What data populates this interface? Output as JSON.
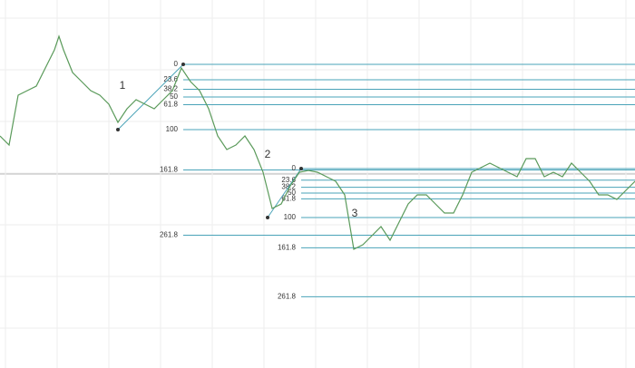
{
  "chart_data": {
    "type": "line",
    "x": [
      0,
      10,
      20,
      30,
      40,
      50,
      60,
      65,
      70,
      80,
      90,
      100,
      110,
      120,
      130,
      140,
      150,
      160,
      170,
      180,
      190,
      200,
      210,
      220,
      230,
      240,
      250,
      260,
      270,
      280,
      290,
      300,
      310,
      320,
      330,
      340,
      350,
      360,
      370,
      380,
      390,
      400,
      410,
      420,
      430,
      440,
      450,
      460,
      470,
      480,
      490,
      500,
      510,
      520,
      530,
      540,
      550,
      560,
      570,
      580,
      590,
      600,
      610,
      620,
      630,
      640,
      650,
      660,
      670,
      680,
      690,
      700
    ],
    "series": [
      {
        "color": "#5a9a5a",
        "values": [
          256,
          246,
          301,
          306,
          311,
          331,
          351,
          366,
          351,
          326,
          316,
          306,
          301,
          291,
          271,
          286,
          296,
          291,
          286,
          296,
          306,
          331,
          316,
          306,
          286,
          256,
          241,
          246,
          256,
          241,
          216,
          176,
          181,
          201,
          216,
          218,
          216,
          211,
          206,
          191,
          131,
          136,
          146,
          156,
          141,
          161,
          181,
          191,
          191,
          181,
          171,
          171,
          191,
          216,
          221,
          226,
          221,
          216,
          211,
          231,
          231,
          211,
          216,
          211,
          226,
          216,
          206,
          191,
          191,
          186,
          196,
          206
        ]
      }
    ],
    "xlim": [
      0,
      700
    ],
    "ylim": [
      0,
      406
    ],
    "fibs": [
      {
        "start_x": 130,
        "start": 263,
        "end_x": 202,
        "end": 335,
        "levels": [
          0,
          23.6,
          38.2,
          50,
          61.8,
          100,
          161.8,
          261.8
        ],
        "color": "#4aa3b8"
      },
      {
        "start_x": 295,
        "start": 166,
        "end_x": 332,
        "end": 220,
        "levels": [
          0,
          23.6,
          38.2,
          50,
          61.8,
          100,
          161.8,
          261.8
        ],
        "color": "#4aa3b8"
      }
    ],
    "wave_labels": [
      "1",
      "2",
      "3"
    ]
  }
}
